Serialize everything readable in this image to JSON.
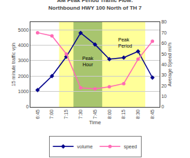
{
  "chart_data": {
    "type": "line",
    "title": "AM Peak Period Traffic Flow:\nNorthbound HWY 100 North of TH 7",
    "xlabel": "Time",
    "ylabel": "15 minute traffic vph",
    "y2label": "Average Speed mi/h",
    "categories": [
      "6:45",
      "7:00",
      "7:15",
      "7:30",
      "7:45",
      "8:00",
      "8:15",
      "8:30",
      "8:45"
    ],
    "series": [
      {
        "name": "volume",
        "color": "#00008B",
        "marker": "diamond",
        "values": [
          1100,
          2000,
          3250,
          4800,
          4050,
          3100,
          3200,
          3600,
          1900
        ]
      },
      {
        "name": "speed",
        "color": "#FF69B4",
        "marker": "circle",
        "axis": "y2",
        "values": [
          70,
          67,
          50,
          18,
          17,
          19,
          22,
          45,
          62
        ]
      }
    ],
    "ylim": [
      0,
      5500
    ],
    "yticks": [
      0,
      1000,
      2000,
      3000,
      4000,
      5000
    ],
    "y2lim": [
      0,
      80
    ],
    "y2ticks": [
      0,
      10,
      20,
      30,
      40,
      50,
      60,
      70,
      80
    ],
    "grid": true,
    "legend": "bottom",
    "spans": [
      {
        "label": "Peak\nPeriod",
        "start": "7:15",
        "end": "8:30",
        "color": "#FFFF99"
      },
      {
        "label": "Peak\nHour",
        "start": "7:30",
        "end": "7:45",
        "color": "#99BB66"
      }
    ]
  }
}
